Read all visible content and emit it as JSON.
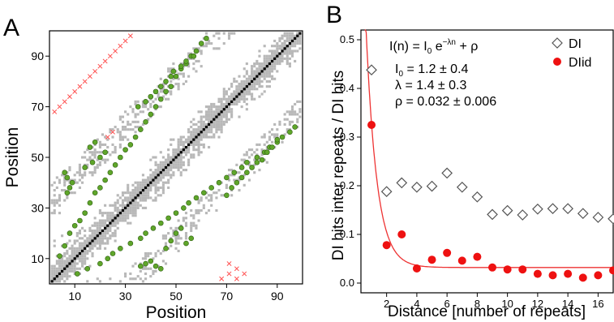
{
  "panels": {
    "A": {
      "letter": "A"
    },
    "B": {
      "letter": "B"
    }
  },
  "chart_data": [
    {
      "type": "heatmap",
      "panel": "A",
      "xlabel": "Position",
      "ylabel": "Position",
      "xlim": [
        0,
        100
      ],
      "ylim": [
        0,
        100
      ],
      "xticks": [
        "10",
        "30",
        "50",
        "70",
        "90"
      ],
      "yticks": [
        "10",
        "30",
        "50",
        "70",
        "90"
      ],
      "xtick_values": [
        10,
        30,
        50,
        70,
        90
      ],
      "ytick_values": [
        10,
        30,
        50,
        70,
        90
      ],
      "diagonal": {
        "from": 1,
        "to": 99,
        "color": "#000000"
      },
      "contact_map_color": "#b8b8b8",
      "green_circle_color": "#5fa62a",
      "red_x_color": "#ff5050",
      "green_hits": [
        [
          4,
          11
        ],
        [
          6,
          15
        ],
        [
          8,
          20
        ],
        [
          10,
          23
        ],
        [
          12,
          25
        ],
        [
          14,
          28
        ],
        [
          16,
          32
        ],
        [
          18,
          36
        ],
        [
          20,
          38
        ],
        [
          22,
          41
        ],
        [
          24,
          44
        ],
        [
          26,
          47
        ],
        [
          28,
          50
        ],
        [
          30,
          53
        ],
        [
          32,
          55
        ],
        [
          34,
          58
        ],
        [
          36,
          61
        ],
        [
          38,
          64
        ],
        [
          40,
          67
        ],
        [
          42,
          70
        ],
        [
          44,
          73
        ],
        [
          46,
          76
        ],
        [
          48,
          78
        ],
        [
          50,
          82
        ],
        [
          52,
          85
        ],
        [
          54,
          87
        ],
        [
          56,
          90
        ],
        [
          58,
          92
        ],
        [
          60,
          95
        ],
        [
          62,
          97
        ],
        [
          11,
          4
        ],
        [
          15,
          6
        ],
        [
          20,
          8
        ],
        [
          23,
          10
        ],
        [
          25,
          12
        ],
        [
          28,
          14
        ],
        [
          32,
          16
        ],
        [
          36,
          18
        ],
        [
          38,
          20
        ],
        [
          41,
          22
        ],
        [
          44,
          24
        ],
        [
          47,
          26
        ],
        [
          50,
          28
        ],
        [
          53,
          30
        ],
        [
          55,
          32
        ],
        [
          58,
          34
        ],
        [
          61,
          36
        ],
        [
          64,
          38
        ],
        [
          67,
          40
        ],
        [
          70,
          42
        ],
        [
          73,
          44
        ],
        [
          76,
          46
        ],
        [
          78,
          48
        ],
        [
          82,
          50
        ],
        [
          85,
          52
        ],
        [
          87,
          54
        ],
        [
          90,
          56
        ],
        [
          92,
          58
        ],
        [
          95,
          60
        ],
        [
          97,
          62
        ],
        [
          36,
          7
        ],
        [
          38,
          8
        ],
        [
          40,
          9
        ],
        [
          42,
          7
        ],
        [
          44,
          6
        ],
        [
          46,
          14
        ],
        [
          48,
          17
        ],
        [
          50,
          20
        ],
        [
          52,
          22
        ],
        [
          54,
          16
        ],
        [
          56,
          18
        ],
        [
          70,
          35
        ],
        [
          72,
          38
        ],
        [
          74,
          40
        ],
        [
          76,
          42
        ],
        [
          78,
          44
        ],
        [
          80,
          46
        ],
        [
          82,
          48
        ],
        [
          84,
          49
        ],
        [
          86,
          52
        ],
        [
          88,
          54
        ],
        [
          90,
          57
        ],
        [
          7,
          36
        ],
        [
          8,
          38
        ],
        [
          9,
          40
        ],
        [
          7,
          42
        ],
        [
          6,
          44
        ],
        [
          14,
          46
        ],
        [
          17,
          48
        ],
        [
          20,
          50
        ],
        [
          22,
          52
        ],
        [
          16,
          54
        ],
        [
          18,
          56
        ],
        [
          35,
          70
        ],
        [
          38,
          72
        ],
        [
          40,
          74
        ],
        [
          42,
          76
        ],
        [
          44,
          78
        ],
        [
          46,
          80
        ],
        [
          48,
          82
        ],
        [
          49,
          84
        ],
        [
          52,
          86
        ],
        [
          54,
          88
        ],
        [
          57,
          90
        ]
      ],
      "red_hits": [
        [
          2,
          68
        ],
        [
          4,
          70
        ],
        [
          6,
          72
        ],
        [
          8,
          74
        ],
        [
          10,
          76
        ],
        [
          12,
          78
        ],
        [
          14,
          80
        ],
        [
          16,
          82
        ],
        [
          18,
          84
        ],
        [
          20,
          86
        ],
        [
          22,
          88
        ],
        [
          24,
          90
        ],
        [
          26,
          92
        ],
        [
          28,
          94
        ],
        [
          30,
          96
        ],
        [
          32,
          98
        ],
        [
          25,
          60
        ],
        [
          23,
          58
        ],
        [
          68,
          2
        ],
        [
          71,
          4
        ],
        [
          74,
          6
        ],
        [
          74,
          2
        ],
        [
          77,
          4
        ],
        [
          71,
          8
        ]
      ]
    },
    {
      "type": "scatter",
      "panel": "B",
      "xlabel": "Distance [number of repeats]",
      "ylabel": "DI hits inter repeats / DI hits",
      "xlim": [
        0.3,
        17
      ],
      "ylim": [
        -0.02,
        0.52
      ],
      "xticks": [
        2,
        4,
        6,
        8,
        10,
        12,
        14,
        16
      ],
      "yticks": [
        "0.0",
        "0.1",
        "0.2",
        "0.3",
        "0.4",
        "0.5"
      ],
      "ytick_values": [
        0.0,
        0.1,
        0.2,
        0.3,
        0.4,
        0.5
      ],
      "legend_position": "top-right",
      "series": [
        {
          "name": "DI",
          "marker": "diamond-open",
          "color": "#555555",
          "x": [
            1,
            2,
            3,
            4,
            5,
            6,
            7,
            8,
            9,
            10,
            11,
            12,
            13,
            14,
            15,
            16,
            17
          ],
          "y": [
            0.438,
            0.188,
            0.206,
            0.197,
            0.199,
            0.226,
            0.197,
            0.177,
            0.141,
            0.149,
            0.14,
            0.152,
            0.153,
            0.153,
            0.143,
            0.135,
            0.132
          ]
        },
        {
          "name": "DIid",
          "marker": "circle-filled",
          "color": "#ee1111",
          "x": [
            1,
            2,
            3,
            4,
            5,
            6,
            7,
            8,
            9,
            10,
            11,
            12,
            13,
            14,
            15,
            16,
            17
          ],
          "y": [
            0.325,
            0.078,
            0.1,
            0.03,
            0.048,
            0.062,
            0.046,
            0.054,
            0.032,
            0.028,
            0.028,
            0.019,
            0.016,
            0.019,
            0.011,
            0.016,
            0.026
          ]
        }
      ],
      "fit_curve": {
        "I0": 1.2,
        "lambda": 1.4,
        "rho": 0.032,
        "color": "#ee3333"
      },
      "annotations": {
        "formula_lhs": "I(n) = I",
        "formula_sub0": "0",
        "formula_mid": " e",
        "formula_exp": "−λn",
        "formula_rhs": " + ρ",
        "p1_name": "I",
        "p1_sub": "0",
        "p1_value": " = 1.2 ± 0.4",
        "p2": "λ = 1.4 ± 0.3",
        "p3": "ρ = 0.032 ± 0.006"
      }
    }
  ]
}
